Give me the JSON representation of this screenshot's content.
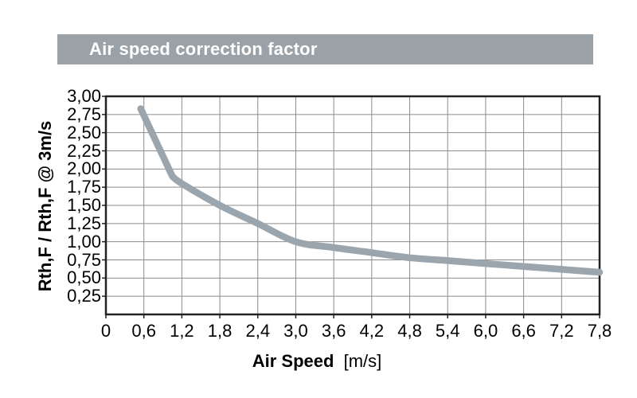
{
  "header": {
    "title": "Air speed correction factor",
    "bg_color": "#9aa1a7",
    "text_color": "#ffffff"
  },
  "chart_data": {
    "type": "line",
    "title": "Air speed correction factor",
    "xlabel": "Air Speed",
    "xlabel_unit": "[m/s]",
    "ylabel": "Rth,F / Rth,F @ 3m/s",
    "xlim": [
      0,
      7.8
    ],
    "ylim": [
      0,
      3.0
    ],
    "x_tick_step": 0.6,
    "y_tick_step": 0.25,
    "x_ticks": [
      "0",
      "0,6",
      "1,2",
      "1,8",
      "2,4",
      "3,0",
      "3,6",
      "4,2",
      "4,8",
      "5,4",
      "6,0",
      "6,6",
      "7,2",
      "7,8"
    ],
    "y_ticks": [
      "0,25",
      "0,50",
      "0,75",
      "1,00",
      "1,25",
      "1,50",
      "1,75",
      "2,00",
      "2,25",
      "2,50",
      "2,75",
      "3,00"
    ],
    "grid": true,
    "legend": "none",
    "grid_color": "#8c8c8c",
    "frame_color": "#222222",
    "line_color": "#9aa5ae",
    "line_width": 8.5,
    "points": [
      [
        0.55,
        2.83
      ],
      [
        1.05,
        1.9
      ],
      [
        1.2,
        1.8
      ],
      [
        1.8,
        1.5
      ],
      [
        2.4,
        1.25
      ],
      [
        3.0,
        1.0
      ],
      [
        3.6,
        0.92
      ],
      [
        4.2,
        0.85
      ],
      [
        4.8,
        0.78
      ],
      [
        5.4,
        0.74
      ],
      [
        6.0,
        0.7
      ],
      [
        6.6,
        0.66
      ],
      [
        7.2,
        0.62
      ],
      [
        7.8,
        0.58
      ]
    ]
  }
}
